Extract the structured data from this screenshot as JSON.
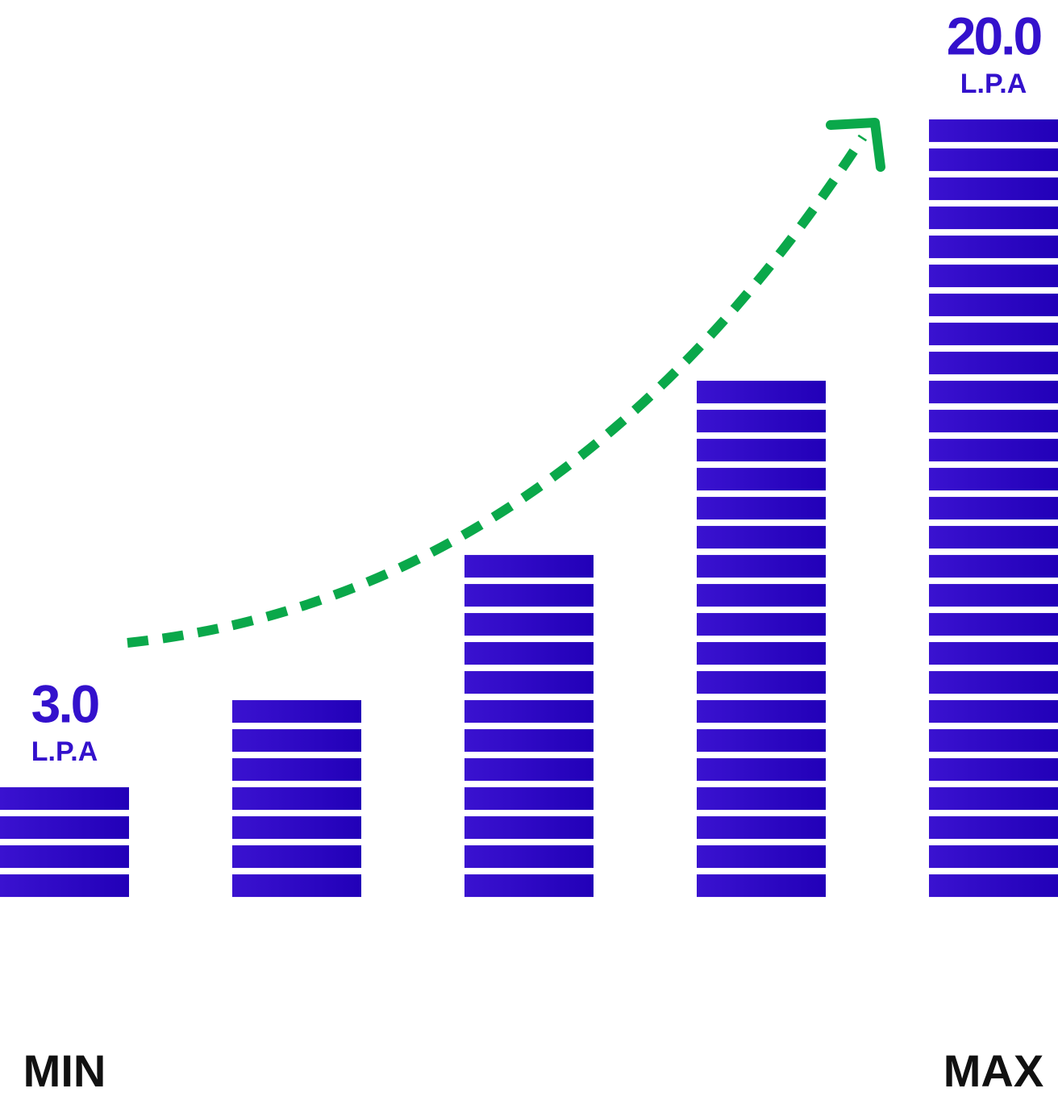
{
  "chart_data": {
    "type": "bar",
    "categories": [
      "MIN",
      null,
      null,
      null,
      "MAX"
    ],
    "values": [
      3,
      5.2,
      8.9,
      13.3,
      20
    ],
    "value_labels": [
      "3.0",
      null,
      null,
      null,
      "20.0"
    ],
    "unit_label": "L.P.A",
    "ylim": [
      -2.75,
      20
    ],
    "color": "#2a08c4"
  }
}
